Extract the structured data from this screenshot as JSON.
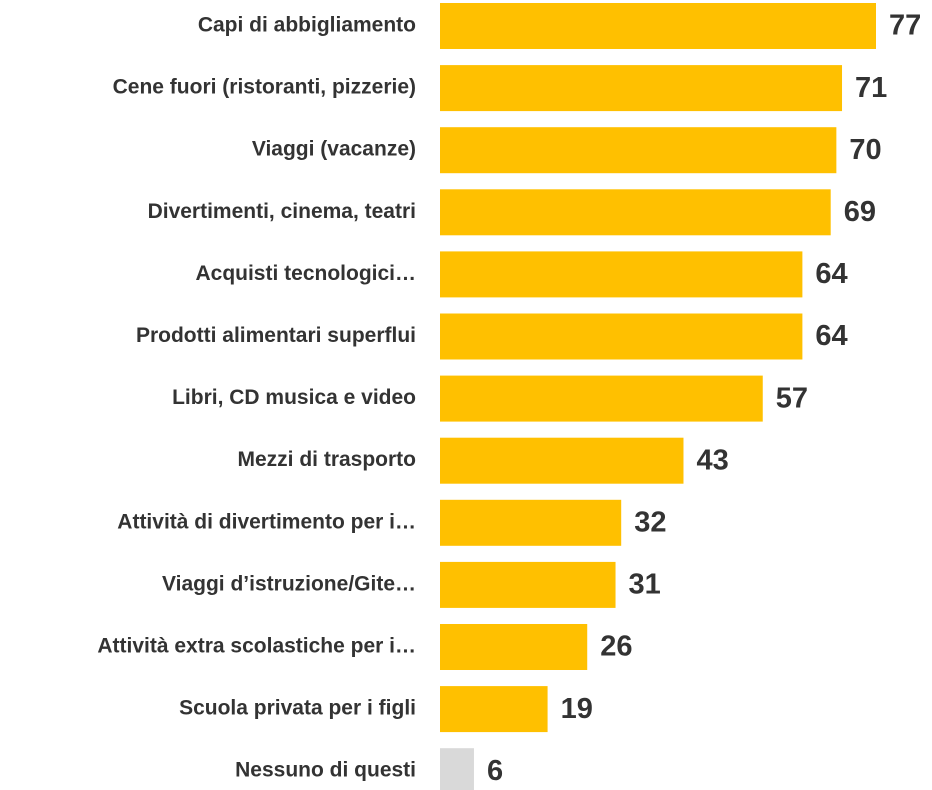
{
  "chart_data": {
    "type": "bar",
    "orientation": "horizontal",
    "categories": [
      "Capi di abbigliamento",
      "Cene fuori (ristoranti, pizzerie)",
      "Viaggi (vacanze)",
      "Divertimenti, cinema, teatri",
      "Acquisti tecnologici…",
      "Prodotti alimentari superflui",
      "Libri, CD musica e video",
      "Mezzi di trasporto",
      "Attività di divertimento per i…",
      "Viaggi d’istruzione/Gite…",
      "Attività extra scolastiche per i…",
      "Scuola privata per i figli",
      "Nessuno di questi"
    ],
    "values": [
      77,
      71,
      70,
      69,
      64,
      64,
      57,
      43,
      32,
      31,
      26,
      19,
      6
    ],
    "colors": [
      "#FFC000",
      "#FFC000",
      "#FFC000",
      "#FFC000",
      "#FFC000",
      "#FFC000",
      "#FFC000",
      "#FFC000",
      "#FFC000",
      "#FFC000",
      "#FFC000",
      "#FFC000",
      "#D9D9D9"
    ]
  }
}
